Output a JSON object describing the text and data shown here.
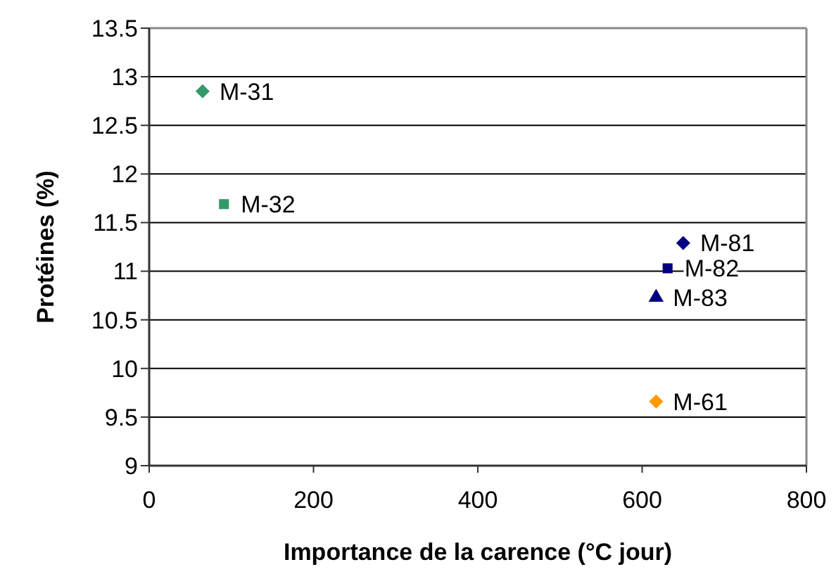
{
  "chart_data": {
    "type": "scatter",
    "xlabel": "Importance de la carence (°C jour)",
    "ylabel": "Protéines (%)",
    "xlim": [
      0,
      800
    ],
    "xticks": [
      0,
      200,
      400,
      600,
      800
    ],
    "ylim": [
      9,
      13.5
    ],
    "yticks": [
      9,
      {
        "value": 9.5,
        "label": "9.5"
      },
      10,
      {
        "value": 10.5,
        "label": "10.5"
      },
      11,
      {
        "value": 11.5,
        "label": "11.5"
      },
      12,
      {
        "value": 12.5,
        "label": "12.5"
      },
      13,
      {
        "value": 13.5,
        "label": "13.5"
      }
    ],
    "grid": "y",
    "series": [
      {
        "name": "M-31",
        "color": "#339966",
        "marker": "diamond",
        "x": [
          65
        ],
        "values": [
          12.85
        ]
      },
      {
        "name": "M-32",
        "color": "#339966",
        "marker": "square",
        "x": [
          91
        ],
        "values": [
          11.69
        ]
      },
      {
        "name": "M-81",
        "color": "#000080",
        "marker": "diamond",
        "x": [
          650
        ],
        "values": [
          11.29
        ]
      },
      {
        "name": "M-82",
        "color": "#000080",
        "marker": "square",
        "x": [
          631
        ],
        "values": [
          11.03
        ]
      },
      {
        "name": "M-83",
        "color": "#000080",
        "marker": "triangle",
        "x": [
          617
        ],
        "values": [
          10.73
        ]
      },
      {
        "name": "M-61",
        "color": "#ff9900",
        "marker": "diamond",
        "x": [
          617
        ],
        "values": [
          9.66
        ]
      }
    ]
  }
}
